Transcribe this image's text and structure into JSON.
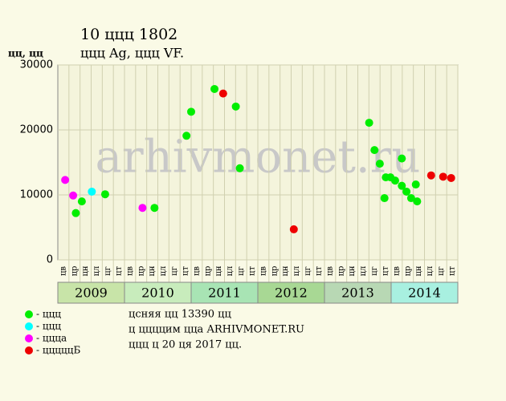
{
  "chart_data": {
    "type": "scatter",
    "title": "10 ццц 1802",
    "subtitle": "ццц Ag, ццц VF.",
    "y_label": "цц, цц",
    "watermark": "arhivmonet.ru",
    "xlim": [
      2009,
      2015
    ],
    "years": [
      "2009",
      "2010",
      "2011",
      "2012",
      "2013",
      "2014"
    ],
    "year_colors": [
      "#c8e4a8",
      "#c8ecbc",
      "#a8e4b4",
      "#a8d894",
      "#b8d8b4",
      "#a8f0e0"
    ],
    "month_labels": [
      "цв",
      "цр",
      "цн",
      "цл",
      "цг",
      "цт",
      "цв",
      "цр",
      "цн",
      "цл",
      "цг",
      "цт",
      "цв",
      "цр",
      "цн",
      "цл",
      "цг",
      "цт",
      "цв",
      "цр",
      "цн",
      "цл",
      "цг",
      "цт",
      "цв",
      "цр",
      "цн",
      "цл",
      "цг",
      "цт",
      "цв",
      "цр",
      "цн",
      "цл",
      "цг",
      "цт"
    ],
    "ylim": [
      0,
      30000
    ],
    "yticks": [
      0,
      10000,
      20000,
      30000
    ],
    "grid": true,
    "series": [
      {
        "name": "- ццц",
        "color": "#00ee00",
        "x": [
          2009.27,
          2009.36,
          2009.71,
          2010.45,
          2010.93,
          2011.0,
          2011.35,
          2011.67,
          2011.73,
          2013.67,
          2013.75,
          2013.83,
          2013.9,
          2013.92,
          2013.99,
          2014.06,
          2014.16,
          2014.16,
          2014.23,
          2014.3,
          2014.37,
          2014.39
        ],
        "values": [
          7200,
          9000,
          10100,
          8000,
          19100,
          22800,
          26300,
          23600,
          14100,
          21100,
          16900,
          14800,
          9500,
          12700,
          12700,
          12200,
          15600,
          11400,
          10500,
          9500,
          11600,
          9000
        ]
      },
      {
        "name": "- ццц",
        "color": "#00ffff",
        "x": [
          2009.51
        ],
        "values": [
          10500
        ]
      },
      {
        "name": "- ццца",
        "color": "#ff00ff",
        "x": [
          2009.11,
          2009.23,
          2010.27
        ],
        "values": [
          12300,
          9900,
          8000
        ]
      },
      {
        "name": "- цццццБ",
        "color": "#ee0000",
        "x": [
          2011.48,
          2012.54,
          2014.6,
          2014.78,
          2014.9
        ],
        "values": [
          25600,
          4700,
          13000,
          12800,
          12600
        ]
      }
    ],
    "notes": [
      "цсняя цц 13390 цц",
      "ц ццццим цца ARHIVMONET.RU",
      "ццц ц 20 ця 2017 цц."
    ]
  }
}
